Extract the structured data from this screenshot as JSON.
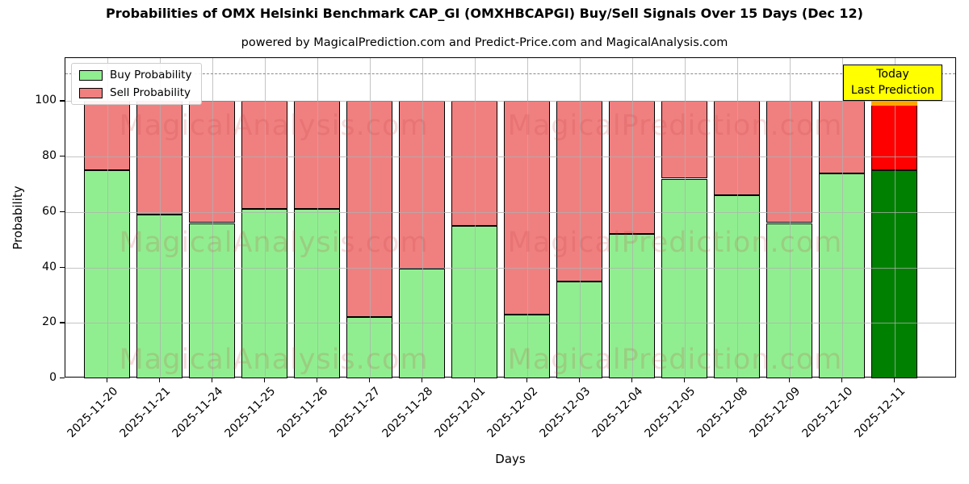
{
  "title": "Probabilities of OMX Helsinki Benchmark CAP_GI (OMXHBCAPGI) Buy/Sell Signals Over 15 Days (Dec 12)",
  "subtitle": "powered by MagicalPrediction.com and Predict-Price.com and MagicalAnalysis.com",
  "axes": {
    "x_label": "Days",
    "y_label": "Probability",
    "y_ticks": [
      0,
      20,
      40,
      60,
      80,
      100
    ],
    "ylim": [
      0,
      115.5
    ],
    "dashed_threshold": 110,
    "grid": true
  },
  "legend": {
    "items": [
      {
        "label": "Buy Probability",
        "color": "#90EE90"
      },
      {
        "label": "Sell Probability",
        "color": "#F08080"
      }
    ],
    "position": "upper left"
  },
  "annotation": {
    "lines": [
      "Today",
      "Last Prediction"
    ],
    "bg_color": "#FFFF00",
    "highlight_color": "#FFA500"
  },
  "watermarks": {
    "left_text": "MagicalAnalysis.com",
    "right_text": "MagicalPrediction.com",
    "rows": 3
  },
  "colors": {
    "buy": "#90EE90",
    "sell": "#F08080",
    "buy_today": "#008000",
    "sell_today": "#FF0000",
    "bar_edge": "#000000",
    "grid": "#B0B0B0",
    "dashed": "#8A8A8A"
  },
  "chart_data": {
    "type": "bar",
    "stacked": true,
    "title": "Probabilities of OMX Helsinki Benchmark CAP_GI (OMXHBCAPGI) Buy/Sell Signals Over 15 Days (Dec 12)",
    "xlabel": "Days",
    "ylabel": "Probability",
    "ylim": [
      0,
      115.5
    ],
    "legend_position": "upper left",
    "grid": true,
    "categories": [
      "2025-11-20",
      "2025-11-21",
      "2025-11-24",
      "2025-11-25",
      "2025-11-26",
      "2025-11-27",
      "2025-11-28",
      "2025-12-01",
      "2025-12-02",
      "2025-12-03",
      "2025-12-04",
      "2025-12-05",
      "2025-12-08",
      "2025-12-09",
      "2025-12-10",
      "2025-12-11"
    ],
    "series": [
      {
        "name": "Buy Probability",
        "values": [
          75,
          59,
          56,
          61,
          61,
          22,
          39.5,
          55,
          23,
          35,
          52,
          72,
          66,
          56,
          74,
          75
        ]
      },
      {
        "name": "Sell Probability",
        "values": [
          25,
          41,
          44,
          39,
          39,
          78,
          60.5,
          45,
          77,
          65,
          48,
          28,
          34,
          44,
          26,
          25
        ]
      }
    ],
    "today_index": 15
  }
}
